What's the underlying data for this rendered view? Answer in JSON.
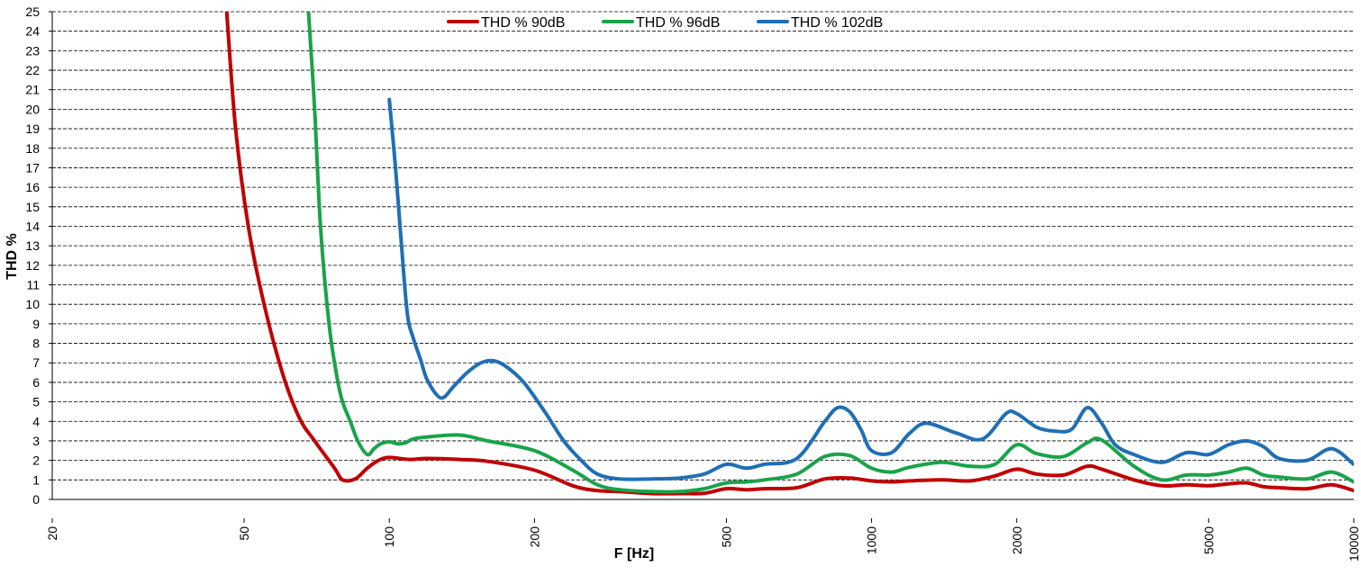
{
  "chart_data": {
    "type": "line",
    "xlabel": "F [Hz]",
    "ylabel": "THD %",
    "x_scale": "log",
    "xlim": [
      20,
      10000
    ],
    "ylim": [
      0,
      25
    ],
    "grid": {
      "horizontal": true,
      "vertical": false,
      "style": "dashed"
    },
    "legend_position": "top-center",
    "x_ticks": [
      "20",
      "50",
      "100",
      "200",
      "500",
      "1000",
      "2000",
      "5000",
      "10000"
    ],
    "y_ticks": [
      "0",
      "1",
      "2",
      "3",
      "4",
      "5",
      "6",
      "7",
      "8",
      "9",
      "10",
      "11",
      "12",
      "13",
      "14",
      "15",
      "16",
      "17",
      "18",
      "19",
      "20",
      "21",
      "22",
      "23",
      "24",
      "25"
    ],
    "series": [
      {
        "name": "THD % 90dB",
        "color": "#c00000",
        "x": [
          46,
          48,
          51,
          55,
          60,
          65,
          70,
          77,
          80,
          85,
          90,
          95,
          100,
          110,
          120,
          140,
          160,
          200,
          240,
          270,
          300,
          350,
          400,
          450,
          500,
          550,
          600,
          700,
          800,
          900,
          1000,
          1100,
          1200,
          1400,
          1600,
          1800,
          2000,
          2200,
          2500,
          2800,
          3000,
          3500,
          4000,
          4500,
          5000,
          5500,
          6000,
          6500,
          7000,
          8000,
          9000,
          10000
        ],
        "y": [
          25,
          19,
          14,
          10,
          6.5,
          4.2,
          3.0,
          1.6,
          1.0,
          1.05,
          1.6,
          2.0,
          2.15,
          2.05,
          2.1,
          2.05,
          1.95,
          1.5,
          0.7,
          0.45,
          0.4,
          0.3,
          0.3,
          0.32,
          0.55,
          0.5,
          0.55,
          0.6,
          1.05,
          1.1,
          0.95,
          0.9,
          0.95,
          1.0,
          0.95,
          1.2,
          1.55,
          1.3,
          1.25,
          1.7,
          1.55,
          1.0,
          0.7,
          0.75,
          0.7,
          0.8,
          0.85,
          0.65,
          0.6,
          0.55,
          0.75,
          0.45
        ]
      },
      {
        "name": "THD % 96dB",
        "color": "#1aa34a",
        "x": [
          68,
          70,
          72,
          75,
          78,
          80,
          83,
          86,
          90,
          93,
          96,
          100,
          104,
          108,
          112,
          120,
          140,
          160,
          200,
          240,
          270,
          300,
          350,
          400,
          450,
          500,
          550,
          600,
          700,
          800,
          900,
          1000,
          1100,
          1200,
          1400,
          1600,
          1800,
          2000,
          2200,
          2500,
          2800,
          3000,
          3500,
          4000,
          4500,
          5000,
          5500,
          6000,
          6500,
          7000,
          8000,
          9000,
          10000
        ],
        "y": [
          25,
          20,
          14,
          9,
          6.2,
          5.0,
          4.0,
          3.0,
          2.3,
          2.6,
          2.85,
          2.95,
          2.85,
          2.9,
          3.1,
          3.2,
          3.3,
          3.0,
          2.5,
          1.5,
          0.75,
          0.5,
          0.4,
          0.4,
          0.55,
          0.85,
          0.9,
          1.0,
          1.3,
          2.2,
          2.25,
          1.6,
          1.4,
          1.65,
          1.9,
          1.7,
          1.8,
          2.8,
          2.35,
          2.2,
          2.9,
          3.05,
          1.7,
          1.0,
          1.25,
          1.25,
          1.4,
          1.6,
          1.25,
          1.15,
          1.05,
          1.4,
          0.9
        ]
      },
      {
        "name": "THD % 102dB",
        "color": "#1f6fb5",
        "x": [
          100,
          103,
          106,
          109,
          112,
          116,
          120,
          128,
          136,
          145,
          155,
          165,
          175,
          190,
          210,
          230,
          250,
          270,
          300,
          350,
          400,
          450,
          500,
          550,
          600,
          700,
          800,
          850,
          900,
          950,
          1000,
          1100,
          1200,
          1300,
          1500,
          1700,
          1900,
          2000,
          2200,
          2400,
          2600,
          2800,
          3000,
          3200,
          3500,
          4000,
          4500,
          5000,
          5500,
          6000,
          6500,
          7000,
          8000,
          9000,
          10000
        ],
        "y": [
          20.5,
          17,
          13,
          9.5,
          8.3,
          7.2,
          6.1,
          5.2,
          5.8,
          6.5,
          7.0,
          7.1,
          6.8,
          6.0,
          4.5,
          3.0,
          2.0,
          1.3,
          1.05,
          1.05,
          1.1,
          1.3,
          1.8,
          1.6,
          1.8,
          2.1,
          4.0,
          4.7,
          4.5,
          3.6,
          2.5,
          2.4,
          3.4,
          3.9,
          3.4,
          3.1,
          4.4,
          4.4,
          3.7,
          3.5,
          3.6,
          4.7,
          3.9,
          2.8,
          2.3,
          1.9,
          2.4,
          2.3,
          2.8,
          3.0,
          2.7,
          2.1,
          2.0,
          2.6,
          1.8
        ]
      }
    ]
  }
}
